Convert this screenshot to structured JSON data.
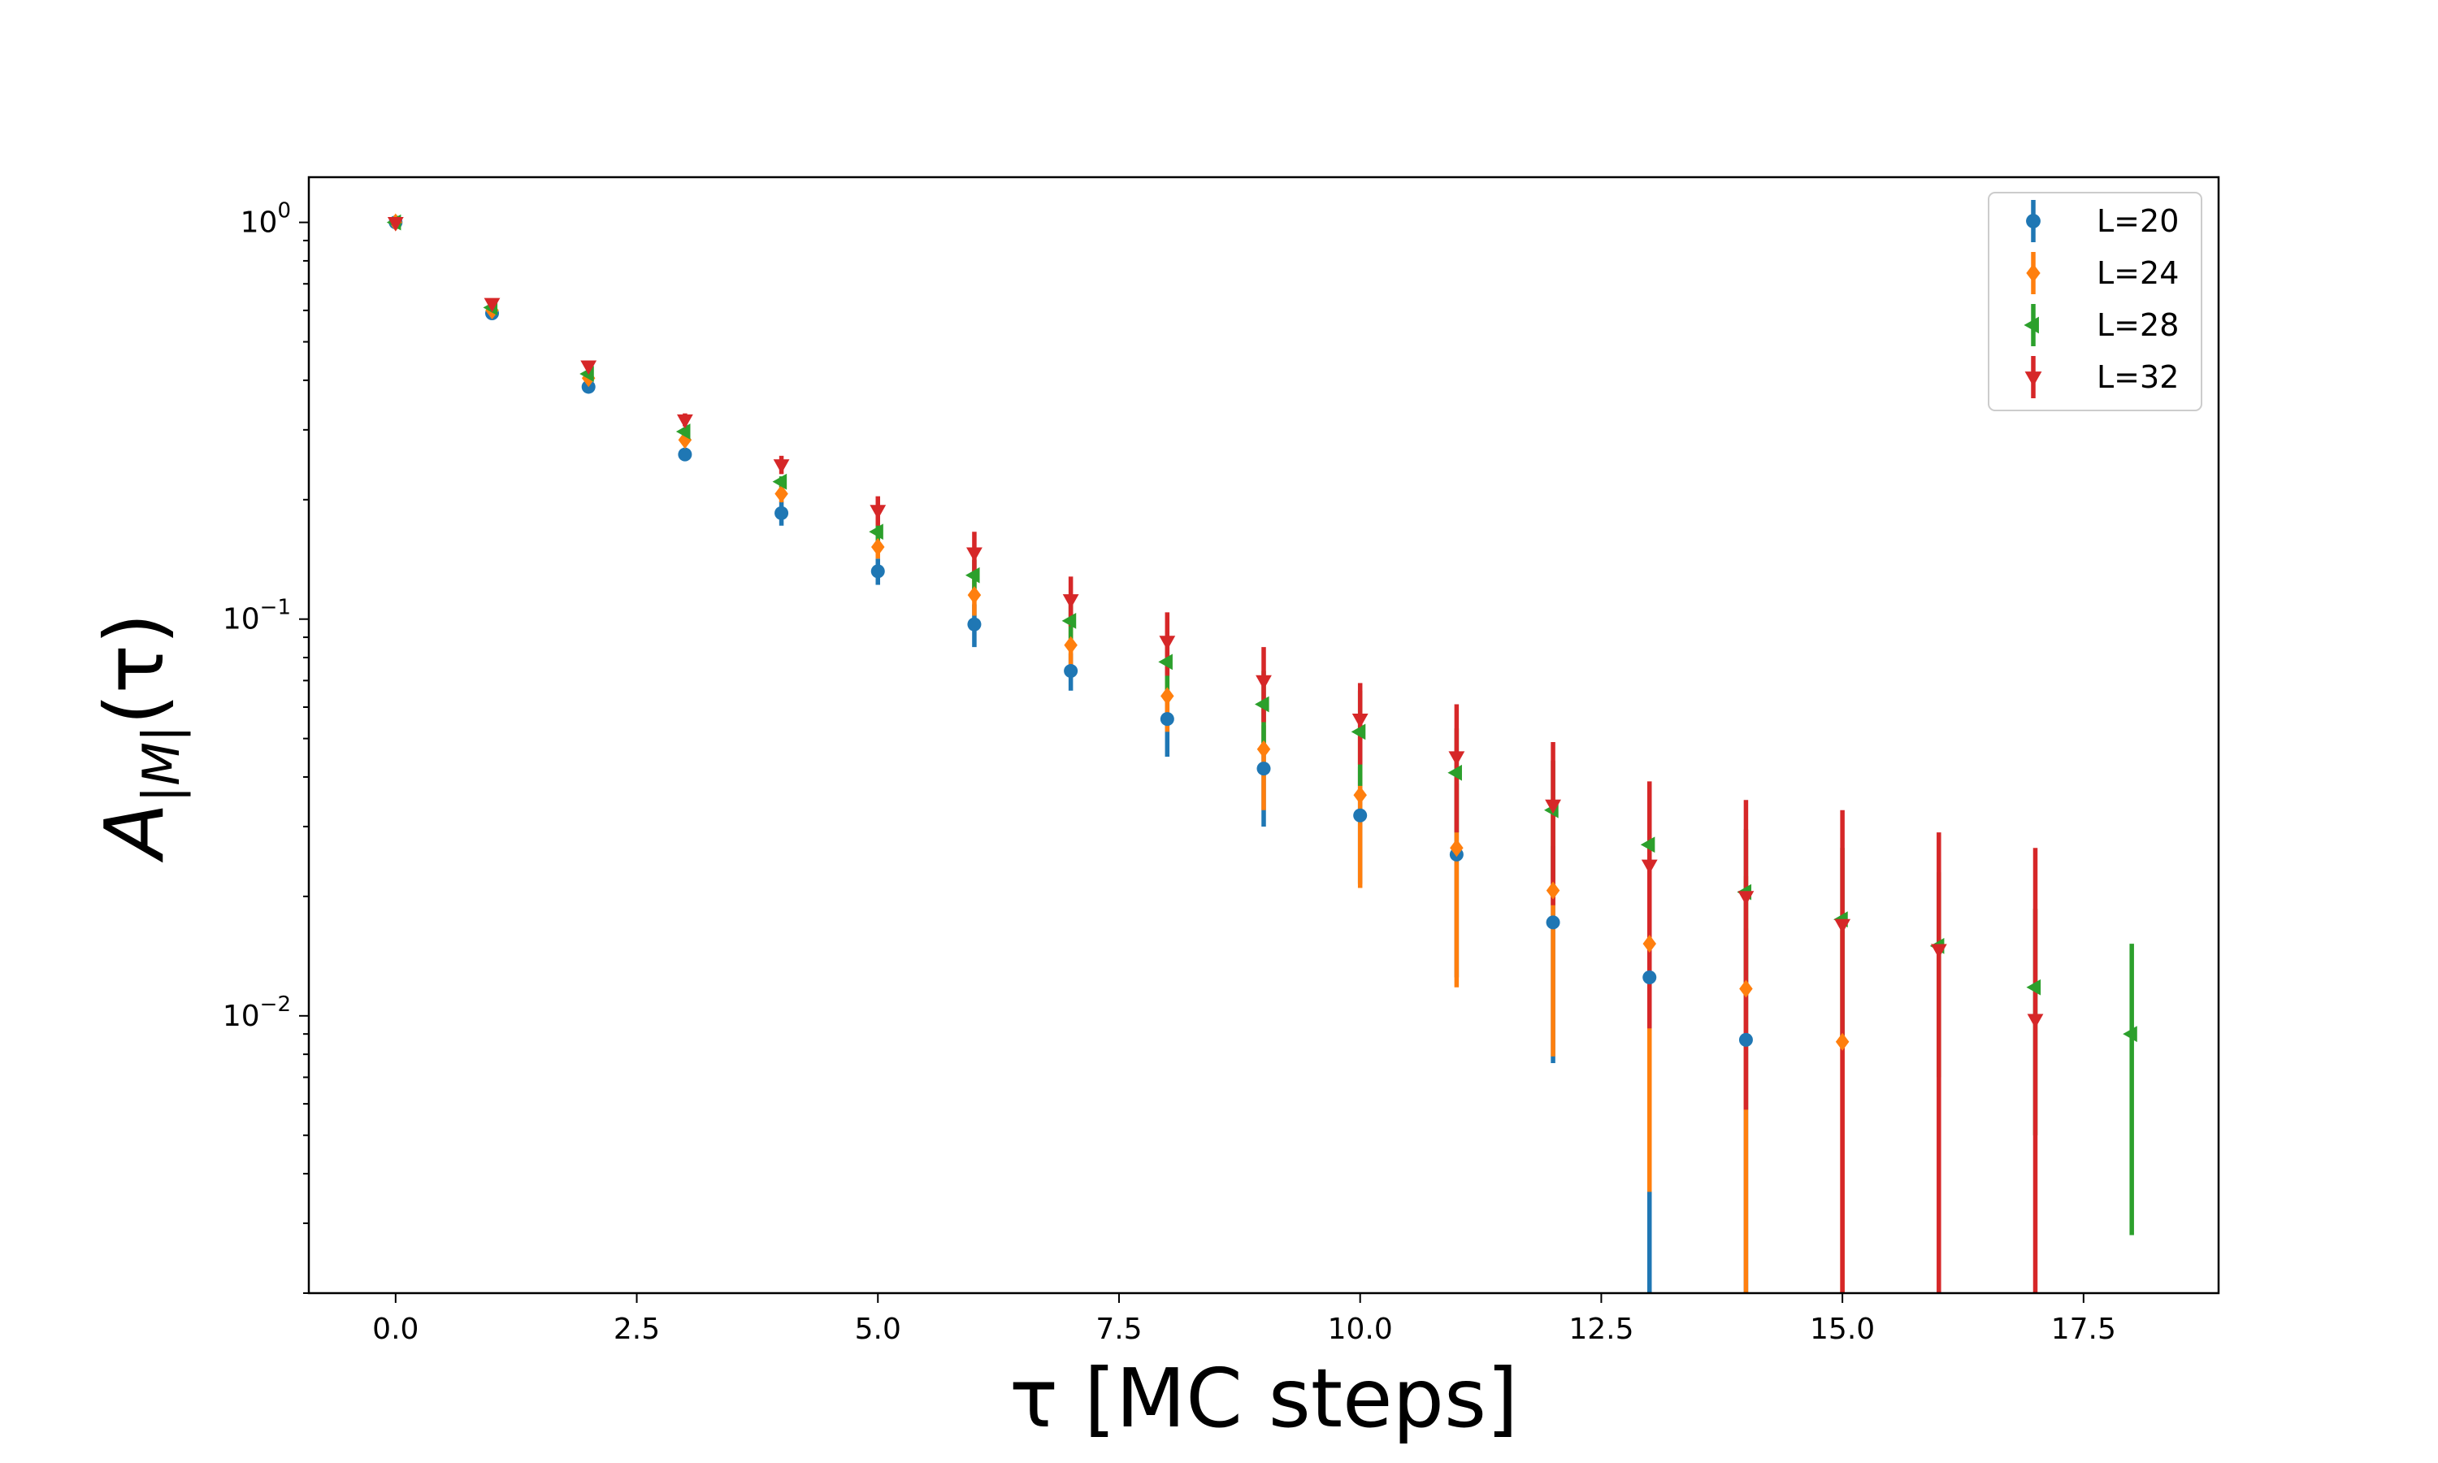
{
  "chart_data": {
    "type": "scatter",
    "title": "",
    "xlabel": "τ [MC steps]",
    "ylabel_main": "A",
    "ylabel_sub": "|M|",
    "ylabel_arg": "(τ)",
    "y_scale": "log",
    "xlim": [
      -0.9,
      18.9
    ],
    "ylim": [
      0.002,
      1.3
    ],
    "x_ticks": [
      0,
      2.5,
      5,
      7.5,
      10,
      12.5,
      15,
      17.5
    ],
    "x_tick_labels": [
      "0.0",
      "2.5",
      "5.0",
      "7.5",
      "10.0",
      "12.5",
      "15.0",
      "17.5"
    ],
    "y_ticks": [
      {
        "value": 1,
        "base": "10",
        "exp": "0"
      },
      {
        "value": 0.1,
        "base": "10",
        "exp": "−1"
      },
      {
        "value": 0.01,
        "base": "10",
        "exp": "−2"
      }
    ],
    "grid": false,
    "legend_position": "top-right",
    "series": [
      {
        "name": "L=20",
        "color": "#1f77b4",
        "marker": "circle",
        "x": [
          0,
          1,
          2,
          3,
          4,
          5,
          6,
          7,
          8,
          9,
          10,
          11,
          12,
          13,
          14
        ],
        "y": [
          1.0,
          0.59,
          0.385,
          0.26,
          0.185,
          0.132,
          0.097,
          0.074,
          0.056,
          0.042,
          0.032,
          0.0255,
          0.0172,
          0.0125,
          0.0087
        ],
        "y_low": [
          0.995,
          0.585,
          0.375,
          0.255,
          0.172,
          0.122,
          0.085,
          0.066,
          0.045,
          0.03,
          0.0215,
          0.0125,
          0.0076,
          0.0009,
          0.0008
        ],
        "y_high": [
          1.005,
          0.595,
          0.395,
          0.265,
          0.198,
          0.142,
          0.109,
          0.082,
          0.067,
          0.054,
          0.0425,
          0.0385,
          0.0268,
          0.0242,
          0.0166
        ]
      },
      {
        "name": "L=24",
        "color": "#ff7f0e",
        "marker": "diamond",
        "x": [
          0,
          1,
          2,
          3,
          4,
          5,
          6,
          7,
          8,
          9,
          10,
          11,
          12,
          13,
          14,
          15
        ],
        "y": [
          1.0,
          0.6,
          0.405,
          0.283,
          0.207,
          0.152,
          0.115,
          0.086,
          0.064,
          0.047,
          0.036,
          0.0265,
          0.0207,
          0.0152,
          0.0117,
          0.0086
        ],
        "y_low": [
          0.995,
          0.595,
          0.395,
          0.275,
          0.197,
          0.142,
          0.102,
          0.075,
          0.052,
          0.033,
          0.021,
          0.0118,
          0.0079,
          0.0036,
          0.0009,
          0.0008
        ],
        "y_high": [
          1.005,
          0.605,
          0.415,
          0.291,
          0.217,
          0.162,
          0.128,
          0.097,
          0.076,
          0.061,
          0.051,
          0.0412,
          0.0335,
          0.0268,
          0.0225,
          0.0164
        ]
      },
      {
        "name": "L=28",
        "color": "#2ca02c",
        "marker": "triangle-left",
        "x": [
          0,
          1,
          2,
          3,
          4,
          5,
          6,
          7,
          8,
          9,
          10,
          11,
          12,
          13,
          14,
          15,
          16,
          17,
          18
        ],
        "y": [
          1.0,
          0.61,
          0.415,
          0.297,
          0.222,
          0.166,
          0.129,
          0.099,
          0.078,
          0.061,
          0.052,
          0.041,
          0.033,
          0.027,
          0.0205,
          0.0175,
          0.015,
          0.0118,
          0.009
        ],
        "y_low": [
          0.995,
          0.605,
          0.405,
          0.29,
          0.215,
          0.156,
          0.117,
          0.087,
          0.066,
          0.048,
          0.038,
          0.029,
          0.022,
          0.0165,
          0.0115,
          0.0085,
          0.007,
          0.005,
          0.0028
        ],
        "y_high": [
          1.005,
          0.615,
          0.425,
          0.304,
          0.229,
          0.176,
          0.141,
          0.111,
          0.09,
          0.074,
          0.066,
          0.053,
          0.044,
          0.0375,
          0.0295,
          0.0265,
          0.023,
          0.0186,
          0.0152
        ]
      },
      {
        "name": "L=32",
        "color": "#d62728",
        "marker": "triangle-down",
        "x": [
          0,
          1,
          2,
          3,
          4,
          5,
          6,
          7,
          8,
          9,
          10,
          11,
          12,
          13,
          14,
          15,
          16,
          17
        ],
        "y": [
          1.0,
          0.625,
          0.435,
          0.318,
          0.245,
          0.188,
          0.147,
          0.112,
          0.088,
          0.07,
          0.056,
          0.045,
          0.034,
          0.024,
          0.02,
          0.017,
          0.0147,
          0.0098
        ],
        "y_low": [
          0.995,
          0.615,
          0.425,
          0.306,
          0.232,
          0.172,
          0.128,
          0.096,
          0.072,
          0.055,
          0.043,
          0.029,
          0.019,
          0.0093,
          0.0058,
          0.0009,
          0.0008,
          0.0008
        ],
        "y_high": [
          1.005,
          0.635,
          0.445,
          0.33,
          0.258,
          0.204,
          0.166,
          0.128,
          0.104,
          0.085,
          0.069,
          0.061,
          0.049,
          0.039,
          0.035,
          0.033,
          0.029,
          0.0265
        ]
      }
    ]
  }
}
